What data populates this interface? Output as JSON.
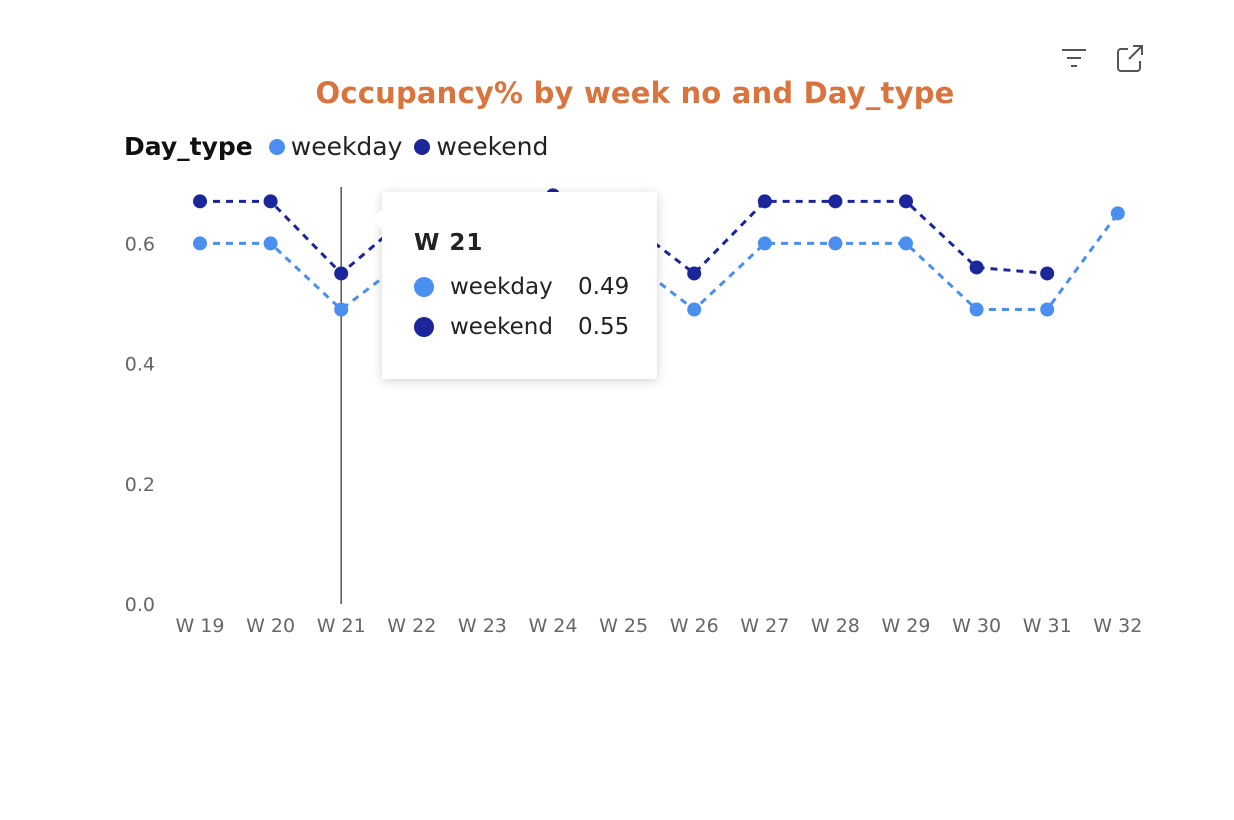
{
  "colors": {
    "weekday": "#4a8ff0",
    "weekend": "#1a2699",
    "title": "#d9743e"
  },
  "icons": {
    "filter": "filter-icon",
    "expand": "expand-icon"
  },
  "chart_data": {
    "type": "line",
    "title": "Occupancy% by week no and Day_type",
    "legend_title": "Day_type",
    "legend_position": "top-left",
    "categories": [
      "W 19",
      "W 20",
      "W 21",
      "W 22",
      "W 23",
      "W 24",
      "W 25",
      "W 26",
      "W 27",
      "W 28",
      "W 29",
      "W 30",
      "W 31",
      "W 32"
    ],
    "y_ticks": [
      "0.0",
      "0.2",
      "0.4",
      "0.6"
    ],
    "ylim": [
      0,
      0.7
    ],
    "series": [
      {
        "name": "weekday",
        "color": "#4a8ff0",
        "values": [
          0.6,
          0.6,
          0.49,
          0.58,
          0.6,
          0.62,
          0.58,
          0.49,
          0.6,
          0.6,
          0.6,
          0.49,
          0.49,
          0.65
        ]
      },
      {
        "name": "weekend",
        "color": "#1a2699",
        "values": [
          0.67,
          0.67,
          0.55,
          0.65,
          0.66,
          0.68,
          0.64,
          0.55,
          0.67,
          0.67,
          0.67,
          0.56,
          0.55,
          null
        ]
      }
    ],
    "hover": {
      "category": "W 21",
      "tooltip_title": "W 21",
      "rows": [
        {
          "name": "weekday",
          "value": "0.49",
          "color": "#4a8ff0"
        },
        {
          "name": "weekend",
          "value": "0.55",
          "color": "#1a2699"
        }
      ]
    }
  }
}
